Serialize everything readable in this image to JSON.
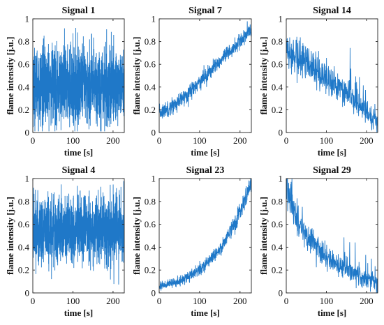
{
  "chart_data": [
    {
      "type": "line",
      "title": "Signal 1",
      "xlabel": "time [s]",
      "ylabel": "flame intensity [j.u.]",
      "xlim": [
        0,
        228
      ],
      "ylim": [
        0,
        1
      ],
      "xticks": [
        0,
        100,
        200
      ],
      "yticks": [
        0,
        0.2,
        0.4,
        0.6,
        0.8,
        1
      ],
      "xtick_labels": [
        "0",
        "100",
        "200"
      ],
      "ytick_labels": [
        "0",
        "0.2",
        "0.4",
        "0.6",
        "0.8",
        "1"
      ],
      "color": "#1f78c8",
      "series": [
        {
          "x": [
            0,
            228
          ],
          "y": [
            0.41,
            0.41
          ],
          "noise": "dense random fluctuation, ~0.05 to 0.9 envelope"
        }
      ]
    },
    {
      "type": "line",
      "title": "Signal 7",
      "xlabel": "time [s]",
      "ylabel": "flame intensity [j.u.]",
      "xlim": [
        0,
        228
      ],
      "ylim": [
        0,
        1
      ],
      "xticks": [
        0,
        100,
        200
      ],
      "yticks": [
        0,
        0.2,
        0.4,
        0.6,
        0.8,
        1
      ],
      "xtick_labels": [
        "0",
        "100",
        "200"
      ],
      "ytick_labels": [
        "0",
        "0.2",
        "0.4",
        "0.6",
        "0.8",
        "1"
      ],
      "color": "#1f78c8",
      "series": [
        {
          "x": [
            0,
            50,
            100,
            150,
            200,
            228
          ],
          "y": [
            0.17,
            0.27,
            0.45,
            0.62,
            0.8,
            0.9
          ]
        }
      ]
    },
    {
      "type": "line",
      "title": "Signal 14",
      "xlabel": "time [s]",
      "ylabel": "flame intensity [j.u.]",
      "xlim": [
        0,
        228
      ],
      "ylim": [
        0,
        1
      ],
      "xticks": [
        0,
        100,
        200
      ],
      "yticks": [
        0,
        0.2,
        0.4,
        0.6,
        0.8,
        1
      ],
      "xtick_labels": [
        "0",
        "100",
        "200"
      ],
      "ytick_labels": [
        "0",
        "0.2",
        "0.4",
        "0.6",
        "0.8",
        "1"
      ],
      "color": "#1f78c8",
      "series": [
        {
          "x": [
            0,
            50,
            100,
            150,
            200,
            228
          ],
          "y": [
            0.72,
            0.6,
            0.47,
            0.35,
            0.18,
            0.08
          ]
        }
      ]
    },
    {
      "type": "line",
      "title": "Signal 4",
      "xlabel": "time [s]",
      "ylabel": "flame intensity [j.u.]",
      "xlim": [
        0,
        228
      ],
      "ylim": [
        0,
        1
      ],
      "xticks": [
        0,
        100,
        200
      ],
      "yticks": [
        0,
        0.2,
        0.4,
        0.6,
        0.8,
        1
      ],
      "xtick_labels": [
        "0",
        "100",
        "200"
      ],
      "ytick_labels": [
        "0",
        "0.2",
        "0.4",
        "0.6",
        "0.8",
        "1"
      ],
      "color": "#1f78c8",
      "series": [
        {
          "x": [
            0,
            228
          ],
          "y": [
            0.55,
            0.55
          ],
          "noise": "dense random fluctuation, ~0.1 to 0.95 envelope"
        }
      ]
    },
    {
      "type": "line",
      "title": "Signal 23",
      "xlabel": "time [s]",
      "ylabel": "flame intensity [j.u.]",
      "xlim": [
        0,
        228
      ],
      "ylim": [
        0,
        1
      ],
      "xticks": [
        0,
        100,
        200
      ],
      "yticks": [
        0,
        0.2,
        0.4,
        0.6,
        0.8,
        1
      ],
      "xtick_labels": [
        "0",
        "100",
        "200"
      ],
      "ytick_labels": [
        "0",
        "0.2",
        "0.4",
        "0.6",
        "0.8",
        "1"
      ],
      "color": "#1f78c8",
      "series": [
        {
          "x": [
            0,
            50,
            100,
            150,
            200,
            228
          ],
          "y": [
            0.06,
            0.1,
            0.2,
            0.38,
            0.7,
            0.96
          ]
        }
      ]
    },
    {
      "type": "line",
      "title": "Signal 29",
      "xlabel": "time [s]",
      "ylabel": "flame intensity [j.u.]",
      "xlim": [
        0,
        228
      ],
      "ylim": [
        0,
        1
      ],
      "xticks": [
        0,
        100,
        200
      ],
      "yticks": [
        0,
        0.2,
        0.4,
        0.6,
        0.8,
        1
      ],
      "xtick_labels": [
        "0",
        "100",
        "200"
      ],
      "ytick_labels": [
        "0",
        "0.2",
        "0.4",
        "0.6",
        "0.8",
        "1"
      ],
      "color": "#1f78c8",
      "series": [
        {
          "x": [
            0,
            25,
            50,
            100,
            150,
            200,
            228
          ],
          "y": [
            0.97,
            0.65,
            0.5,
            0.3,
            0.2,
            0.12,
            0.08
          ]
        }
      ]
    }
  ]
}
